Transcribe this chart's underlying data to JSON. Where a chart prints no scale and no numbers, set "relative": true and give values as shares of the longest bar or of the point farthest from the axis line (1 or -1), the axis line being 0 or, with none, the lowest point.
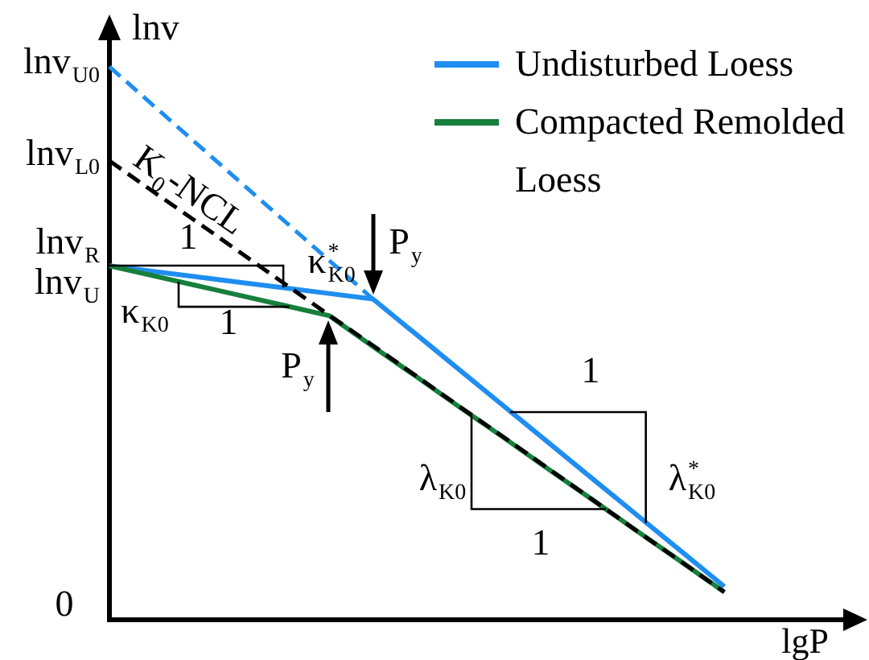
{
  "chart_data": {
    "type": "line",
    "relative": true,
    "xlabel": "lgP",
    "ylabel": "lnv",
    "legend": "top right",
    "marker": "none",
    "categories": [
      null,
      null,
      null,
      null,
      null,
      null,
      null,
      null,
      null,
      null,
      null,
      null,
      null,
      null,
      null,
      null,
      null,
      null
    ],
    "series": [
      {
        "name": "Undisturbed Loess",
        "color": "#1f8ef1",
        "line_style": "solid",
        "values": [
          0.64,
          0.63,
          0.62,
          0.61,
          0.6,
          0.59,
          0.58,
          0.515,
          0.45,
          0.385,
          0.32,
          0.255,
          0.19,
          0.125,
          0.06,
          null,
          null,
          null
        ]
      },
      {
        "color": "#1f8ef1",
        "line_style": "dashed",
        "values": [
          1,
          0.93,
          0.86,
          0.79,
          0.72,
          0.65,
          0.58,
          null,
          null,
          null,
          null,
          null,
          null,
          null,
          null,
          null,
          null,
          null
        ]
      },
      {
        "name": "Compacted Remolded Loess",
        "color": "#16803c",
        "line_style": "solid",
        "values": [
          0.64,
          0.622,
          0.604,
          0.586,
          0.568,
          0.55,
          0.494,
          0.439,
          0.383,
          0.328,
          0.272,
          0.217,
          0.161,
          0.106,
          0.05,
          null,
          null,
          null
        ]
      },
      {
        "name": "K$_{0}$-NCL",
        "color": "#000000",
        "line_style": "dashed",
        "values": [
          0.83,
          0.774,
          0.719,
          0.663,
          0.607,
          0.551,
          0.496,
          0.44,
          0.384,
          0.329,
          0.273,
          0.217,
          0.161,
          0.106,
          0.05,
          null,
          null,
          null
        ]
      }
    ],
    "annotations": [
      "lnv$_{U0}$",
      "lnv$_{L0}$",
      "lnv$_{R}$",
      "lnv$_{U}$",
      "0",
      "1",
      "κ$^{*}$$_{K0}$",
      "κ$_{K0}$",
      "1",
      "P$_{y}$",
      "P$_{y}$",
      "1",
      "λ$_{K0}$",
      "λ$^{*}$$_{K0}$",
      "1"
    ]
  }
}
